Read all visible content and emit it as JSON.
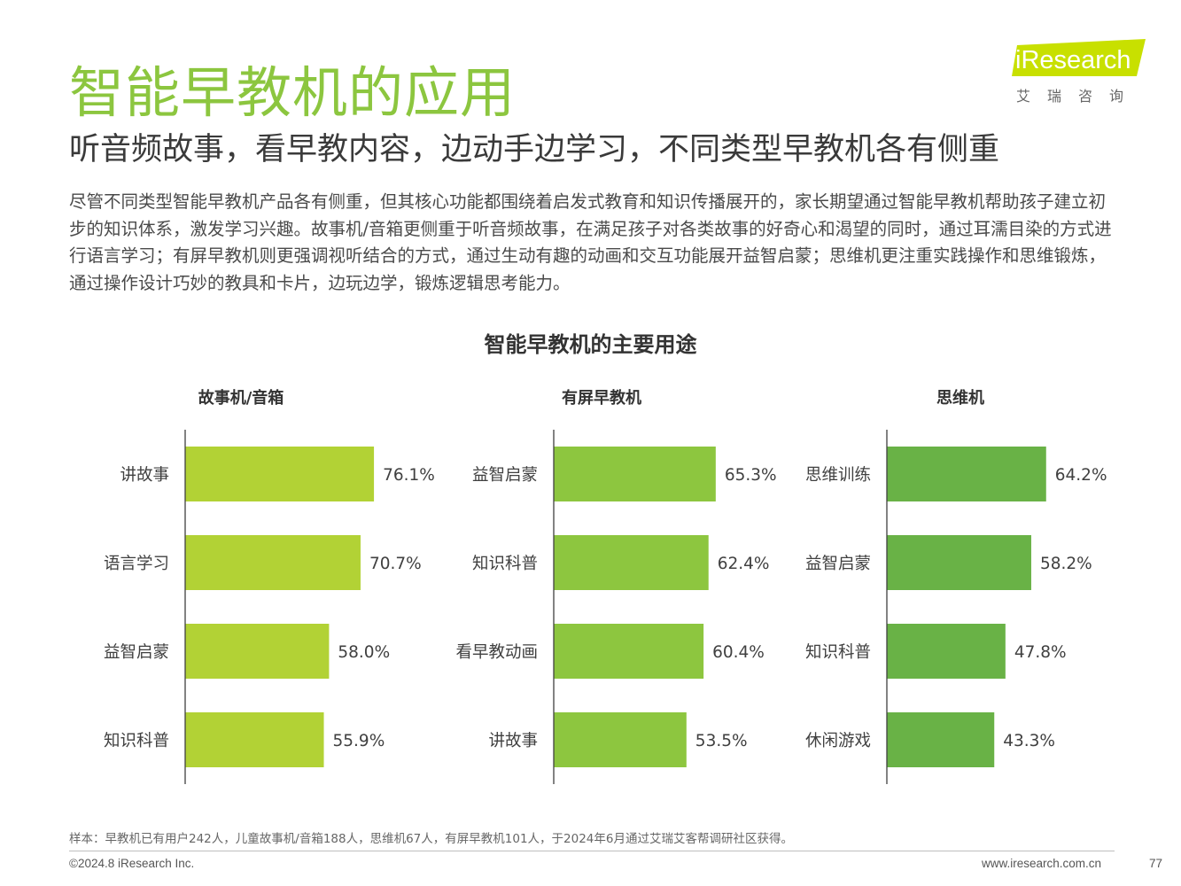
{
  "page": {
    "title": "智能早教机的应用",
    "subtitle": "听音频故事，看早教内容，边动手边学习，不同类型早教机各有侧重",
    "body": "尽管不同类型智能早教机产品各有侧重，但其核心功能都围绕着启发式教育和知识传播展开的，家长期望通过智能早教机帮助孩子建立初步的知识体系，激发学习兴趣。故事机/音箱更侧重于听音频故事，在满足孩子对各类故事的好奇心和渴望的同时，通过耳濡目染的方式进行语言学习；有屏早教机则更强调视听结合的方式，通过生动有趣的动画和交互功能展开益智启蒙；思维机更注重实践操作和思维锻炼，通过操作设计巧妙的教具和卡片，边玩边学，锻炼逻辑思考能力。"
  },
  "logo": {
    "name": "iResearch",
    "name_cn": "艾瑞咨询",
    "colors": {
      "accent": "#c8e000",
      "text": "#ffffff"
    }
  },
  "chart_data": {
    "type": "bar",
    "orientation": "horizontal",
    "title": "智能早教机的主要用途",
    "value_format": "{v}%",
    "xlim": [
      0,
      100
    ],
    "panels": [
      {
        "name": "故事机/音箱",
        "color": "#b2d235",
        "categories": [
          "讲故事",
          "语言学习",
          "益智启蒙",
          "知识科普"
        ],
        "values": [
          76.1,
          70.7,
          58.0,
          55.9
        ],
        "labels": [
          "76.1%",
          "70.7%",
          "58.0%",
          "55.9%"
        ]
      },
      {
        "name": "有屏早教机",
        "color": "#8dc63f",
        "categories": [
          "益智启蒙",
          "知识科普",
          "看早教动画",
          "讲故事"
        ],
        "values": [
          65.3,
          62.4,
          60.4,
          53.5
        ],
        "labels": [
          "65.3%",
          "62.4%",
          "60.4%",
          "53.5%"
        ]
      },
      {
        "name": "思维机",
        "color": "#69b246",
        "categories": [
          "思维训练",
          "益智启蒙",
          "知识科普",
          "休闲游戏"
        ],
        "values": [
          64.2,
          58.2,
          47.8,
          43.3
        ],
        "labels": [
          "64.2%",
          "58.2%",
          "47.8%",
          "43.3%"
        ]
      }
    ]
  },
  "footer": {
    "note": "样本：早教机已有用户242人，儿童故事机/音箱188人，思维机67人，有屏早教机101人，于2024年6月通过艾瑞艾客帮调研社区获得。",
    "copyright": "©2024.8 iResearch Inc.",
    "website": "www.iresearch.com.cn",
    "page_number": "77"
  }
}
